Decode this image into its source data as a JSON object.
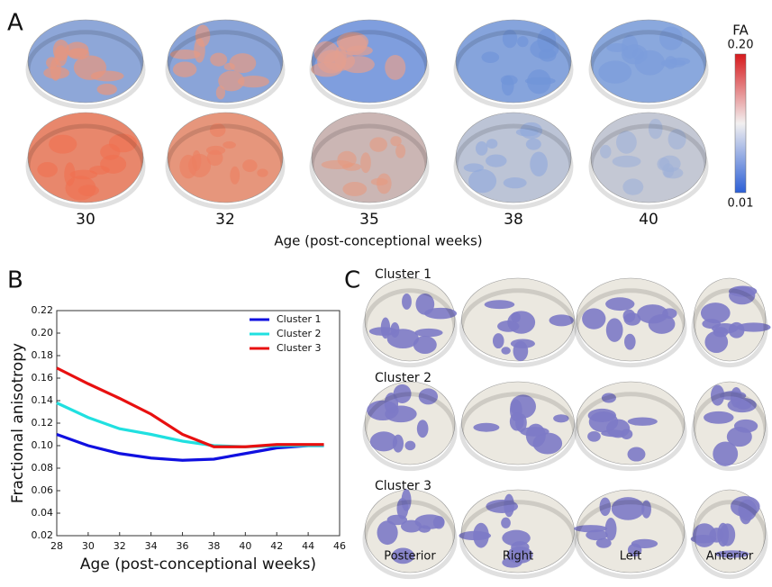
{
  "panel_a": {
    "label": "A",
    "ages": [
      "30",
      "32",
      "35",
      "38",
      "40"
    ],
    "axis_label": "Age (post-conceptional weeks)",
    "colorbar": {
      "title": "FA",
      "max_label": "0.20",
      "min_label": "0.01"
    }
  },
  "panel_b": {
    "label": "B"
  },
  "chart_data": {
    "type": "line",
    "x_label": "Age (post-conceptional weeks)",
    "y_label": "Fractional anisotropy",
    "x": [
      28,
      30,
      32,
      34,
      36,
      38,
      40,
      42,
      44,
      45
    ],
    "series": [
      {
        "name": "Cluster 1",
        "color": "#1010e0",
        "values": [
          0.11,
          0.1,
          0.093,
          0.089,
          0.087,
          0.088,
          0.093,
          0.098,
          0.1,
          0.1
        ]
      },
      {
        "name": "Cluster 2",
        "color": "#20e0e0",
        "values": [
          0.138,
          0.125,
          0.115,
          0.11,
          0.104,
          0.1,
          0.099,
          0.1,
          0.1,
          0.1
        ]
      },
      {
        "name": "Cluster 3",
        "color": "#e81010",
        "values": [
          0.169,
          0.155,
          0.142,
          0.128,
          0.11,
          0.099,
          0.099,
          0.101,
          0.101,
          0.101
        ]
      }
    ],
    "xlim": [
      28,
      46
    ],
    "xticks": [
      28,
      30,
      32,
      34,
      36,
      38,
      40,
      42,
      44,
      46
    ],
    "ylim": [
      0.02,
      0.22
    ],
    "yticks": [
      0.02,
      0.04,
      0.06,
      0.08,
      {
        "value": 0.1,
        "label": "0.10"
      },
      0.12,
      0.14,
      0.16,
      0.18,
      {
        "value": 0.2,
        "label": "0.20"
      },
      0.22
    ],
    "legend": "upper right"
  },
  "panel_c": {
    "label": "C",
    "clusters": [
      "Cluster 1",
      "Cluster 2",
      "Cluster 3"
    ],
    "views": [
      "Posterior",
      "Right",
      "Left",
      "Anterior"
    ]
  }
}
